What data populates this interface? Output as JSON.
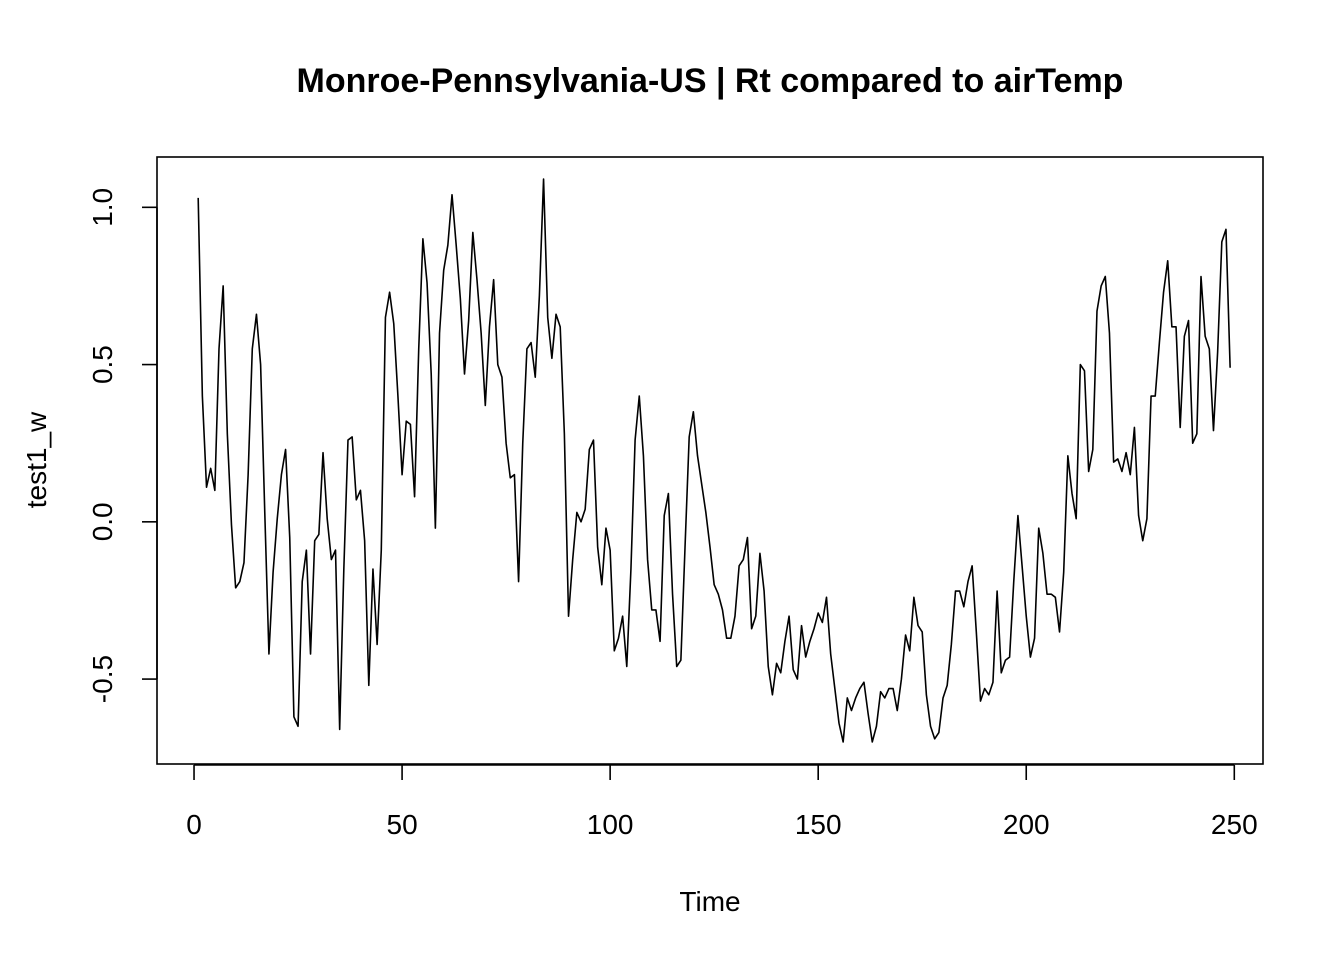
{
  "chart_data": {
    "type": "line",
    "title": "Monroe-Pennsylvania-US | Rt compared to airTemp",
    "xlabel": "Time",
    "ylabel": "test1_w",
    "xlim": [
      -8.9,
      256.9
    ],
    "ylim": [
      -0.77,
      1.16
    ],
    "x_ticks": [
      0,
      50,
      100,
      150,
      200,
      250
    ],
    "x_tick_labels": [
      "0",
      "50",
      "100",
      "150",
      "200",
      "250"
    ],
    "y_ticks": [
      -0.5,
      0.0,
      0.5,
      1.0
    ],
    "y_tick_labels": [
      "-0.5",
      "0.0",
      "0.5",
      "1.0"
    ],
    "grid": false,
    "legend": "none",
    "line_color": "#000000",
    "series": [
      {
        "x_start": 1,
        "x_step": 1,
        "values": [
          1.03,
          0.4,
          0.11,
          0.17,
          0.1,
          0.55,
          0.75,
          0.28,
          -0.01,
          -0.21,
          -0.19,
          -0.13,
          0.15,
          0.55,
          0.66,
          0.5,
          0.03,
          -0.42,
          -0.16,
          0.01,
          0.15,
          0.23,
          -0.05,
          -0.62,
          -0.65,
          -0.19,
          -0.09,
          -0.42,
          -0.06,
          -0.04,
          0.22,
          0.01,
          -0.12,
          -0.09,
          -0.66,
          -0.15,
          0.26,
          0.27,
          0.07,
          0.1,
          -0.06,
          -0.52,
          -0.15,
          -0.39,
          -0.09,
          0.65,
          0.73,
          0.63,
          0.4,
          0.15,
          0.32,
          0.31,
          0.08,
          0.55,
          0.9,
          0.76,
          0.47,
          -0.02,
          0.6,
          0.8,
          0.88,
          1.04,
          0.88,
          0.71,
          0.47,
          0.64,
          0.92,
          0.77,
          0.6,
          0.37,
          0.62,
          0.77,
          0.5,
          0.46,
          0.25,
          0.14,
          0.15,
          -0.19,
          0.25,
          0.55,
          0.57,
          0.46,
          0.72,
          1.09,
          0.65,
          0.52,
          0.66,
          0.62,
          0.28,
          -0.3,
          -0.12,
          0.03,
          0.0,
          0.04,
          0.23,
          0.26,
          -0.08,
          -0.2,
          -0.02,
          -0.09,
          -0.41,
          -0.37,
          -0.3,
          -0.46,
          -0.15,
          0.26,
          0.4,
          0.21,
          -0.12,
          -0.28,
          -0.28,
          -0.38,
          0.02,
          0.09,
          -0.23,
          -0.46,
          -0.44,
          -0.08,
          0.27,
          0.35,
          0.21,
          0.12,
          0.03,
          -0.08,
          -0.2,
          -0.23,
          -0.28,
          -0.37,
          -0.37,
          -0.3,
          -0.14,
          -0.12,
          -0.05,
          -0.34,
          -0.3,
          -0.1,
          -0.22,
          -0.46,
          -0.55,
          -0.45,
          -0.48,
          -0.38,
          -0.3,
          -0.47,
          -0.5,
          -0.33,
          -0.43,
          -0.38,
          -0.34,
          -0.29,
          -0.32,
          -0.24,
          -0.42,
          -0.53,
          -0.64,
          -0.7,
          -0.56,
          -0.6,
          -0.56,
          -0.53,
          -0.51,
          -0.61,
          -0.7,
          -0.65,
          -0.54,
          -0.56,
          -0.53,
          -0.53,
          -0.6,
          -0.5,
          -0.36,
          -0.41,
          -0.24,
          -0.33,
          -0.35,
          -0.55,
          -0.65,
          -0.69,
          -0.67,
          -0.56,
          -0.52,
          -0.39,
          -0.22,
          -0.22,
          -0.27,
          -0.19,
          -0.14,
          -0.35,
          -0.57,
          -0.53,
          -0.55,
          -0.51,
          -0.22,
          -0.48,
          -0.44,
          -0.43,
          -0.19,
          0.02,
          -0.14,
          -0.3,
          -0.43,
          -0.37,
          -0.02,
          -0.1,
          -0.23,
          -0.23,
          -0.24,
          -0.35,
          -0.16,
          0.21,
          0.09,
          0.01,
          0.5,
          0.48,
          0.16,
          0.23,
          0.67,
          0.75,
          0.78,
          0.6,
          0.19,
          0.2,
          0.16,
          0.22,
          0.15,
          0.3,
          0.02,
          -0.06,
          0.01,
          0.4,
          0.4,
          0.57,
          0.73,
          0.83,
          0.62,
          0.62,
          0.3,
          0.59,
          0.64,
          0.25,
          0.28,
          0.78,
          0.59,
          0.55,
          0.29,
          0.54,
          0.89,
          0.93,
          0.49
        ]
      }
    ]
  }
}
